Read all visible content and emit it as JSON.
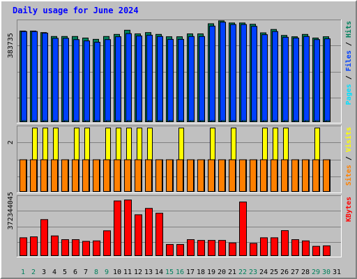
{
  "chart_data": {
    "type": "bar",
    "title": "Daily usage for June 2024",
    "categories": [
      "1",
      "2",
      "3",
      "4",
      "5",
      "6",
      "7",
      "8",
      "9",
      "10",
      "11",
      "12",
      "13",
      "14",
      "15",
      "16",
      "17",
      "18",
      "19",
      "20",
      "21",
      "22",
      "23",
      "24",
      "25",
      "26",
      "27",
      "28",
      "29",
      "30",
      "31"
    ],
    "weekend_days": [
      "1",
      "2",
      "8",
      "9",
      "15",
      "16",
      "22",
      "23",
      "29",
      "30"
    ],
    "panels": [
      {
        "name": "hits-files-pages",
        "y_tick_label": "383735",
        "ymax": 383735,
        "grid": true,
        "legend": [
          {
            "text": "Hits",
            "color": "#00805c"
          },
          {
            "text": "Files",
            "color": "#0040ff"
          },
          {
            "text": "Pages",
            "color": "#00e0ff"
          }
        ],
        "series": [
          {
            "name": "Hits",
            "color": "#00805c",
            "values": [
              349000,
              349000,
              343000,
              328000,
              328000,
              328000,
              322000,
              317000,
              328000,
              336000,
              352000,
              338000,
              343000,
              336000,
              327000,
              327000,
              338000,
              338000,
              377000,
              388000,
              380000,
              380000,
              375000,
              342000,
              355000,
              332000,
              327000,
              336000,
              322000,
              327000,
              0
            ]
          },
          {
            "name": "Files",
            "color": "#0040ff",
            "values": [
              347000,
              347000,
              341000,
              321000,
              321000,
              316000,
              311000,
              306000,
              316000,
              327000,
              339000,
              330000,
              333000,
              328000,
              317000,
              317000,
              328000,
              328000,
              368000,
              383000,
              374000,
              374000,
              367000,
              335000,
              347000,
              325000,
              322000,
              328000,
              316000,
              319000,
              0
            ]
          },
          {
            "name": "Pages",
            "color": "#00e0ff",
            "values": [
              4000,
              4000,
              4000,
              4000,
              4000,
              4000,
              4000,
              4000,
              4000,
              4000,
              4000,
              4000,
              4000,
              4000,
              4000,
              4000,
              4000,
              4000,
              4000,
              4000,
              4000,
              4000,
              4000,
              4000,
              4000,
              4000,
              4000,
              4000,
              4000,
              4000,
              0
            ]
          }
        ]
      },
      {
        "name": "visits-sites",
        "y_tick_label": "2",
        "ymax": 2,
        "grid": true,
        "legend": [
          {
            "text": "Visits",
            "color": "#ffff00"
          },
          {
            "text": "Sites",
            "color": "#ff8000"
          }
        ],
        "series": [
          {
            "name": "Visits",
            "color": "#ffff00",
            "values": [
              1,
              2,
              2,
              2,
              1,
              2,
              2,
              1,
              2,
              2,
              2,
              2,
              2,
              1,
              1,
              2,
              1,
              1,
              2,
              1,
              2,
              1,
              1,
              2,
              2,
              2,
              1,
              1,
              2,
              1,
              0
            ]
          },
          {
            "name": "Sites",
            "color": "#ff8000",
            "values": [
              1,
              1,
              1,
              1,
              1,
              1,
              1,
              1,
              1,
              1,
              1,
              1,
              1,
              1,
              1,
              1,
              1,
              1,
              1,
              1,
              1,
              1,
              1,
              1,
              1,
              1,
              1,
              1,
              1,
              1,
              0
            ]
          }
        ]
      },
      {
        "name": "kbytes",
        "y_tick_label": "372344045",
        "ymax": 372344045,
        "grid": true,
        "legend": [
          {
            "text": "KBytes",
            "color": "#ff0000"
          }
        ],
        "series": [
          {
            "name": "KBytes",
            "color": "#ff0000",
            "values": [
              115000000,
              121000000,
              232000000,
              127000000,
              103000000,
              103000000,
              92000000,
              95000000,
              160000000,
              352000000,
              358000000,
              263000000,
              304000000,
              273000000,
              72000000,
              72000000,
              103000000,
              98000000,
              98000000,
              98000000,
              82000000,
              345000000,
              79000000,
              115000000,
              115000000,
              161000000,
              103000000,
              95000000,
              60000000,
              63000000,
              0
            ]
          }
        ]
      }
    ]
  }
}
